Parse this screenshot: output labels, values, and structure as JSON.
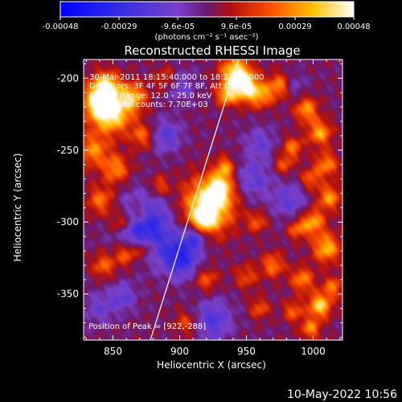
{
  "colorbar": {
    "ticks": [
      "-0.00048",
      "-0.00029",
      "-9.6e-05",
      "9.6e-05",
      "0.00029",
      "0.00048"
    ],
    "unit_label": "(photons cm⁻² s⁻¹ asec⁻²)"
  },
  "title": "Reconstructed RHESSI Image",
  "info": {
    "time": "30-Mar-2011 18:15:40.000 to 18:21:40.000",
    "detectors": "Detectors: 3F 4F 5F 6F 7F 8F, Att 0",
    "energy": "Energy Range: 12.0 - 25.0 keV",
    "clean": "Clean    Total counts: 7.70E+03"
  },
  "peak_label": "Position of Peak = [922,-288]",
  "footer_date": "10-May-2022 10:56",
  "chart_data": {
    "type": "heatmap",
    "title": "Reconstructed RHESSI Image",
    "xlabel": "Heliocentric X (arcsec)",
    "ylabel": "Heliocentric Y (arcsec)",
    "xlim": [
      828,
      1022
    ],
    "ylim": [
      -382,
      -187
    ],
    "xticks": [
      850,
      900,
      950,
      1000
    ],
    "yticks": [
      -200,
      -250,
      -300,
      -350
    ],
    "colorbar_range": [
      -0.00048,
      0.00048
    ],
    "peak": [
      922,
      -288
    ],
    "limb_line": [
      [
        878,
        -382
      ],
      [
        944,
        -187
      ]
    ],
    "blobs": [
      [
        922,
        -288,
        13,
        1.0
      ],
      [
        930,
        -276,
        6,
        0.7
      ],
      [
        934,
        -262,
        5,
        0.55
      ],
      [
        918,
        -298,
        6,
        0.6
      ],
      [
        840,
        -217,
        9,
        0.85
      ],
      [
        850,
        -225,
        10,
        0.75
      ],
      [
        845,
        -205,
        7,
        0.7
      ],
      [
        865,
        -213,
        7,
        0.65
      ],
      [
        835,
        -250,
        8,
        0.55
      ],
      [
        852,
        -263,
        7,
        0.55
      ],
      [
        841,
        -285,
        7,
        0.5
      ],
      [
        856,
        -300,
        6,
        0.5
      ],
      [
        870,
        -294,
        6,
        0.45
      ],
      [
        860,
        -322,
        6,
        0.55
      ],
      [
        843,
        -330,
        6,
        0.45
      ],
      [
        873,
        -318,
        5,
        0.4
      ],
      [
        872,
        -240,
        6,
        0.45
      ],
      [
        885,
        -275,
        5,
        0.4
      ],
      [
        920,
        -340,
        6,
        0.4
      ],
      [
        950,
        -338,
        6,
        0.35
      ],
      [
        905,
        -370,
        6,
        0.35
      ],
      [
        890,
        -200,
        6,
        0.35
      ],
      [
        942,
        -197,
        8,
        0.9
      ],
      [
        950,
        -207,
        7,
        0.8
      ],
      [
        935,
        -212,
        5,
        0.65
      ],
      [
        962,
        -212,
        6,
        0.5
      ],
      [
        975,
        -205,
        6,
        0.55
      ],
      [
        995,
        -222,
        6,
        0.6
      ],
      [
        1005,
        -238,
        6,
        0.65
      ],
      [
        985,
        -248,
        5,
        0.5
      ],
      [
        1010,
        -260,
        6,
        0.55
      ],
      [
        998,
        -270,
        5,
        0.45
      ],
      [
        978,
        -260,
        5,
        0.4
      ],
      [
        1012,
        -283,
        6,
        0.6
      ],
      [
        1000,
        -300,
        6,
        0.65
      ],
      [
        1010,
        -318,
        7,
        0.7
      ],
      [
        988,
        -305,
        5,
        0.45
      ],
      [
        970,
        -330,
        6,
        0.5
      ],
      [
        992,
        -340,
        6,
        0.55
      ],
      [
        1005,
        -358,
        6,
        0.8
      ],
      [
        998,
        -374,
        5,
        0.55
      ],
      [
        985,
        -362,
        5,
        0.45
      ],
      [
        960,
        -360,
        5,
        0.4
      ],
      [
        1015,
        -345,
        5,
        0.5
      ],
      [
        958,
        -300,
        5,
        0.4
      ]
    ],
    "dips": [
      [
        873,
        -302,
        14,
        0.75
      ],
      [
        900,
        -324,
        10,
        0.7
      ],
      [
        925,
        -368,
        10,
        0.45
      ],
      [
        955,
        -270,
        10,
        0.35
      ],
      [
        982,
        -285,
        9,
        0.35
      ],
      [
        890,
        -240,
        8,
        0.4
      ],
      [
        960,
        -245,
        8,
        0.3
      ],
      [
        900,
        -205,
        8,
        0.3
      ],
      [
        840,
        -360,
        8,
        0.3
      ],
      [
        985,
        -205,
        6,
        0.25
      ],
      [
        858,
        -352,
        7,
        0.35
      ],
      [
        912,
        -310,
        6,
        0.45
      ]
    ]
  }
}
